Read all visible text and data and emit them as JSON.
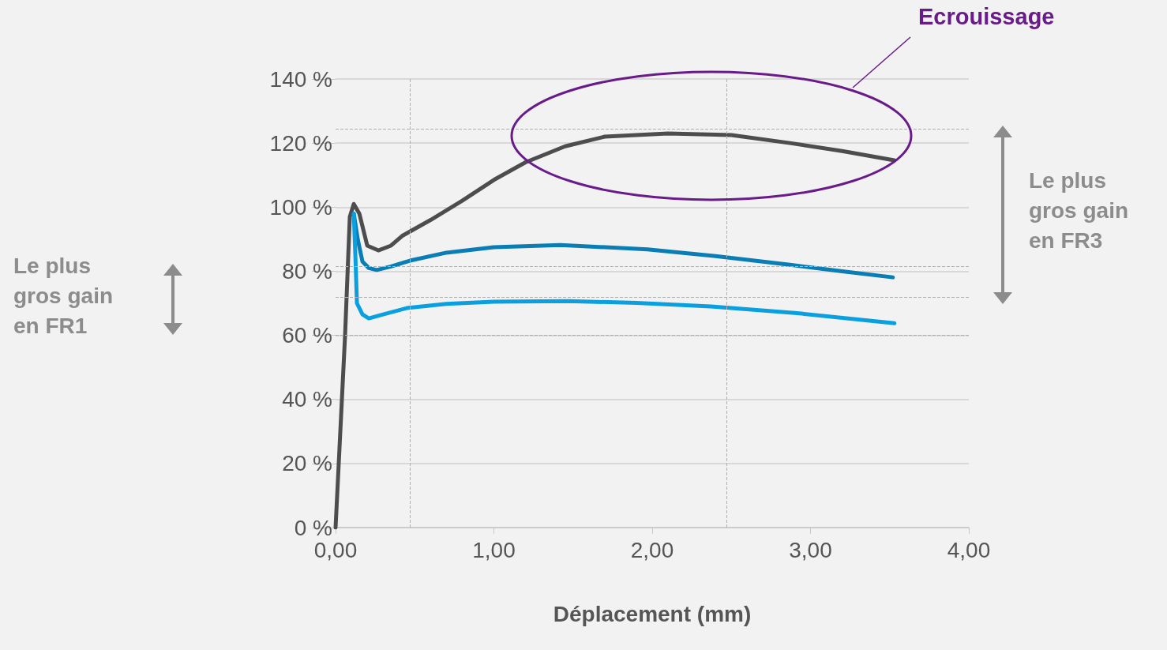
{
  "chart_data": {
    "type": "line",
    "xlabel": "Déplacement (mm)",
    "series": [
      {
        "color": "#4d4d4f",
        "x": [
          0,
          0.06,
          0.09,
          0.115,
          0.15,
          0.2,
          0.27,
          0.35,
          0.42,
          0.6,
          0.8,
          1.0,
          1.2,
          1.45,
          1.7,
          2.1,
          2.5,
          2.87,
          3.2,
          3.53
        ],
        "values": [
          0,
          60,
          97,
          101,
          98,
          88,
          86.5,
          88,
          91,
          96,
          102,
          108.5,
          114,
          119,
          122,
          123,
          122.5,
          120,
          117.5,
          114.6
        ]
      },
      {
        "color": "#0a7db5",
        "x": [
          0.115,
          0.14,
          0.17,
          0.21,
          0.26,
          0.35,
          0.47,
          0.7,
          1.0,
          1.42,
          1.97,
          2.4,
          2.87,
          3.2,
          3.52
        ],
        "values": [
          98,
          90,
          83,
          81,
          80.4,
          81.5,
          83.3,
          85.8,
          87.5,
          88.2,
          86.8,
          84.7,
          82,
          80,
          78.1
        ]
      },
      {
        "color": "#0aa0e0",
        "x": [
          0.115,
          0.125,
          0.135,
          0.17,
          0.21,
          0.3,
          0.45,
          0.7,
          1.0,
          1.47,
          1.9,
          2.37,
          2.9,
          3.53
        ],
        "values": [
          98,
          85,
          70,
          66.5,
          65.3,
          66.5,
          68.5,
          69.8,
          70.5,
          70.7,
          70.1,
          69,
          67,
          63.8
        ]
      }
    ],
    "xlim": [
      0,
      4
    ],
    "xticks": [
      {
        "value": 0,
        "label": "0,00"
      },
      {
        "value": 1,
        "label": "1,00"
      },
      {
        "value": 2,
        "label": "2,00"
      },
      {
        "value": 3,
        "label": "3,00"
      },
      {
        "value": 4,
        "label": "4,00"
      }
    ],
    "ylim": [
      0,
      140
    ],
    "yticks": [
      {
        "value": 0,
        "label": "0 %"
      },
      {
        "value": 20,
        "label": "20 %"
      },
      {
        "value": 40,
        "label": "40 %"
      },
      {
        "value": 60,
        "label": "60 %"
      },
      {
        "value": 80,
        "label": "80 %"
      },
      {
        "value": 100,
        "label": "100 %"
      },
      {
        "value": 120,
        "label": "120 %"
      },
      {
        "value": 140,
        "label": "140 %"
      }
    ],
    "grid": "y",
    "marker": "none",
    "line_style": "solid",
    "ref_lines": [
      {
        "axis": "x",
        "value": 0.47,
        "color": "#b0b0b0",
        "line_style": "dashed"
      },
      {
        "axis": "x",
        "value": 2.47,
        "color": "#b0b0b0",
        "line_style": "dashed"
      },
      {
        "axis": "y",
        "value": 81.5,
        "color": "#b0b0b0",
        "line_style": "dashed"
      },
      {
        "axis": "y",
        "value": 60,
        "color": "#b0b0b0",
        "line_style": "dashed"
      },
      {
        "axis": "y",
        "value": 124.5,
        "color": "#b0b0b0",
        "line_style": "dashed"
      },
      {
        "axis": "y",
        "value": 72,
        "color": "#b0b0b0",
        "line_style": "dashed"
      }
    ],
    "annotations": [
      "Ecrouissage",
      "Le plus\ngros gain\nen FR1",
      "Le plus\ngros gain\nen FR3"
    ]
  }
}
